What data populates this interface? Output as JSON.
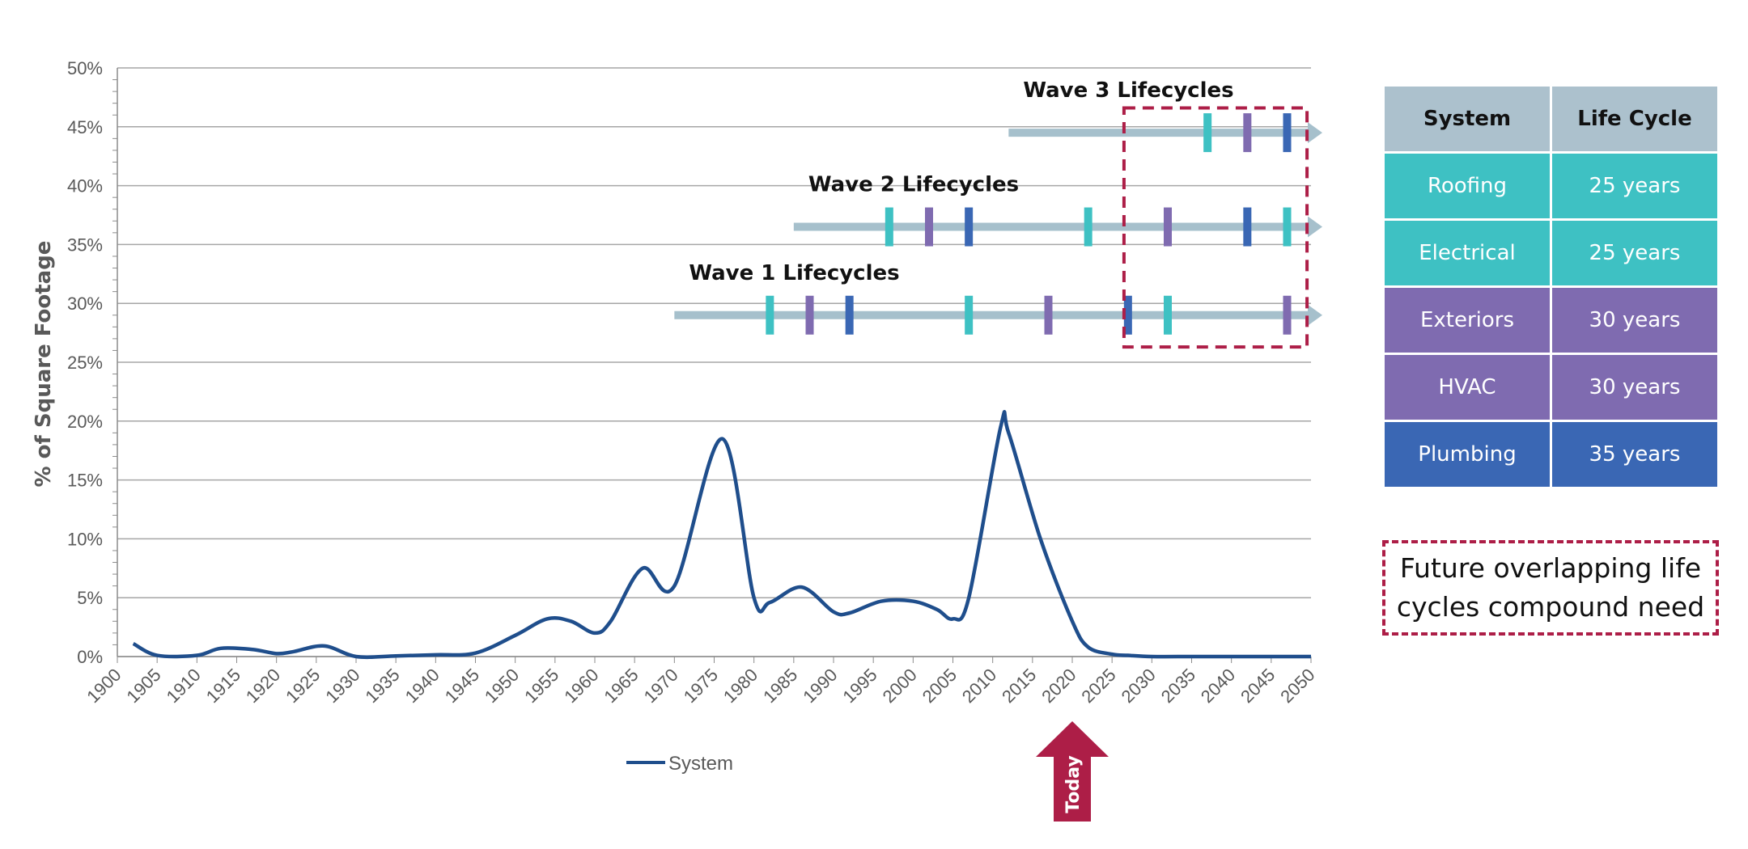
{
  "chart_data": {
    "type": "line",
    "title": "",
    "xlabel": "",
    "ylabel": "% of Square Footage",
    "xlim": [
      1900,
      2050
    ],
    "ylim": [
      0,
      50
    ],
    "x_ticks": [
      "1900",
      "1905",
      "1910",
      "1915",
      "1920",
      "1925",
      "1930",
      "1935",
      "1940",
      "1945",
      "1950",
      "1955",
      "1960",
      "1965",
      "1970",
      "1975",
      "1980",
      "1985",
      "1990",
      "1995",
      "2000",
      "2005",
      "2010",
      "2015",
      "2020",
      "2025",
      "2030",
      "2035",
      "2040",
      "2045",
      "2050"
    ],
    "y_ticks": [
      "0%",
      "5%",
      "10%",
      "15%",
      "20%",
      "25%",
      "30%",
      "35%",
      "40%",
      "45%",
      "50%"
    ],
    "grid": true,
    "legend_position": "bottom",
    "series": [
      {
        "name": "System",
        "color": "#1f4e8c",
        "x": [
          1902,
          1905,
          1910,
          1913,
          1917,
          1920,
          1922,
          1926,
          1930,
          1935,
          1940,
          1945,
          1950,
          1954,
          1957,
          1960,
          1962,
          1966,
          1970,
          1976,
          1980,
          1982,
          1986,
          1990,
          1992,
          1996,
          2000,
          2003,
          2005,
          2007,
          2011,
          2012,
          2016,
          2020,
          2022,
          2025,
          2027,
          2030,
          2035,
          2040,
          2045,
          2050
        ],
        "y": [
          1.1,
          0.1,
          0.1,
          0.7,
          0.6,
          0.25,
          0.4,
          0.9,
          0.0,
          0.05,
          0.15,
          0.3,
          1.8,
          3.2,
          3.0,
          2.0,
          3.0,
          7.5,
          6.0,
          18.5,
          5.0,
          4.6,
          5.9,
          3.8,
          3.7,
          4.7,
          4.7,
          4.0,
          3.2,
          5.0,
          19.5,
          19.0,
          10.0,
          3.0,
          0.8,
          0.2,
          0.1,
          0.0,
          0.0,
          0.0,
          0.0,
          0.0
        ]
      }
    ],
    "annotations": {
      "today_label": "Today",
      "today_year": 2020,
      "waves": [
        {
          "label": "Wave 1 Lifecycles",
          "level": 29,
          "start": 1970,
          "end": 2050,
          "marks": [
            {
              "year": 1982,
              "system": "roofing"
            },
            {
              "year": 1987,
              "system": "exteriors"
            },
            {
              "year": 1992,
              "system": "plumbing"
            },
            {
              "year": 2007,
              "system": "roofing"
            },
            {
              "year": 2017,
              "system": "exteriors"
            },
            {
              "year": 2027,
              "system": "plumbing"
            },
            {
              "year": 2032,
              "system": "roofing"
            },
            {
              "year": 2047,
              "system": "exteriors"
            }
          ]
        },
        {
          "label": "Wave 2 Lifecycles",
          "level": 36.5,
          "start": 1985,
          "end": 2050,
          "marks": [
            {
              "year": 1997,
              "system": "roofing"
            },
            {
              "year": 2002,
              "system": "exteriors"
            },
            {
              "year": 2007,
              "system": "plumbing"
            },
            {
              "year": 2022,
              "system": "roofing"
            },
            {
              "year": 2032,
              "system": "exteriors"
            },
            {
              "year": 2042,
              "system": "plumbing"
            },
            {
              "year": 2047,
              "system": "roofing"
            }
          ]
        },
        {
          "label": "Wave 3 Lifecycles",
          "level": 44.5,
          "start": 2012,
          "end": 2050,
          "marks": [
            {
              "year": 2037,
              "system": "roofing"
            },
            {
              "year": 2042,
              "system": "exteriors"
            },
            {
              "year": 2047,
              "system": "plumbing"
            }
          ]
        }
      ]
    }
  },
  "colors": {
    "roofing": "#3ec1c3",
    "exteriors": "#7f6bb0",
    "plumbing": "#3a67b4",
    "header": "#acc1cd",
    "wave_arrow": "#a6c0cc",
    "accent": "#ad1e47",
    "grid": "#a6a6a6"
  },
  "table": {
    "headers": [
      "System",
      "Life Cycle"
    ],
    "rows": [
      {
        "system": "Roofing",
        "cycle": "25 years",
        "color": "#3ec1c3"
      },
      {
        "system": "Electrical",
        "cycle": "25 years",
        "color": "#3ec1c3"
      },
      {
        "system": "Exteriors",
        "cycle": "30 years",
        "color": "#7f6bb0"
      },
      {
        "system": "HVAC",
        "cycle": "30 years",
        "color": "#7f6bb0"
      },
      {
        "system": "Plumbing",
        "cycle": "35 years",
        "color": "#3a67b4"
      }
    ]
  },
  "note": {
    "line1": "Future overlapping life",
    "line2": "cycles compound need"
  }
}
